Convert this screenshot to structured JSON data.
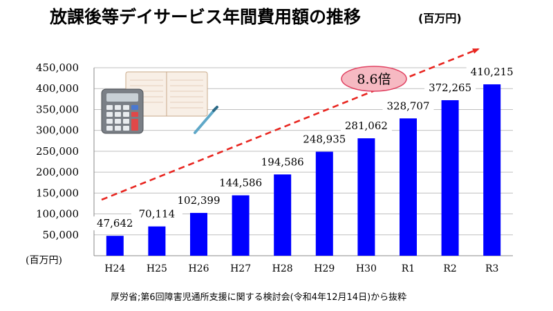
{
  "title": "放課後等デイサービス年間費用額の推移",
  "title_unit": "(百万円)",
  "unit_label": "(百万円)",
  "source": "厚労省;第6回障害児通所支援に関する検討会(令和4年12月14日)から抜粋",
  "growth_callout": "8.6倍",
  "colors": {
    "bar": "#0000ff",
    "trend": "#e8251f",
    "callout_fill": "#f6b9c2",
    "callout_stroke": "#e04060",
    "grid": "#bfbfbf"
  },
  "chart_data": {
    "type": "bar",
    "title": "放課後等デイサービス年間費用額の推移",
    "ylabel": "(百万円)",
    "xlabel": "",
    "ylim": [
      0,
      450000
    ],
    "y_ticks": [
      50000,
      100000,
      150000,
      200000,
      250000,
      300000,
      350000,
      400000,
      450000
    ],
    "y_tick_labels": [
      "50,000",
      "100,000",
      "150,000",
      "200,000",
      "250,000",
      "300,000",
      "350,000",
      "400,000",
      "450,000"
    ],
    "categories": [
      "H24",
      "H25",
      "H26",
      "H27",
      "H28",
      "H29",
      "H30",
      "R1",
      "R2",
      "R3"
    ],
    "values": [
      47642,
      70114,
      102399,
      144586,
      194586,
      248935,
      281062,
      328707,
      372265,
      410215
    ],
    "value_labels": [
      "47,642",
      "70,114",
      "102,399",
      "144,586",
      "194,586",
      "248,935",
      "281,062",
      "328,707",
      "372,265",
      "410,215"
    ],
    "grid": true,
    "legend": "none"
  }
}
